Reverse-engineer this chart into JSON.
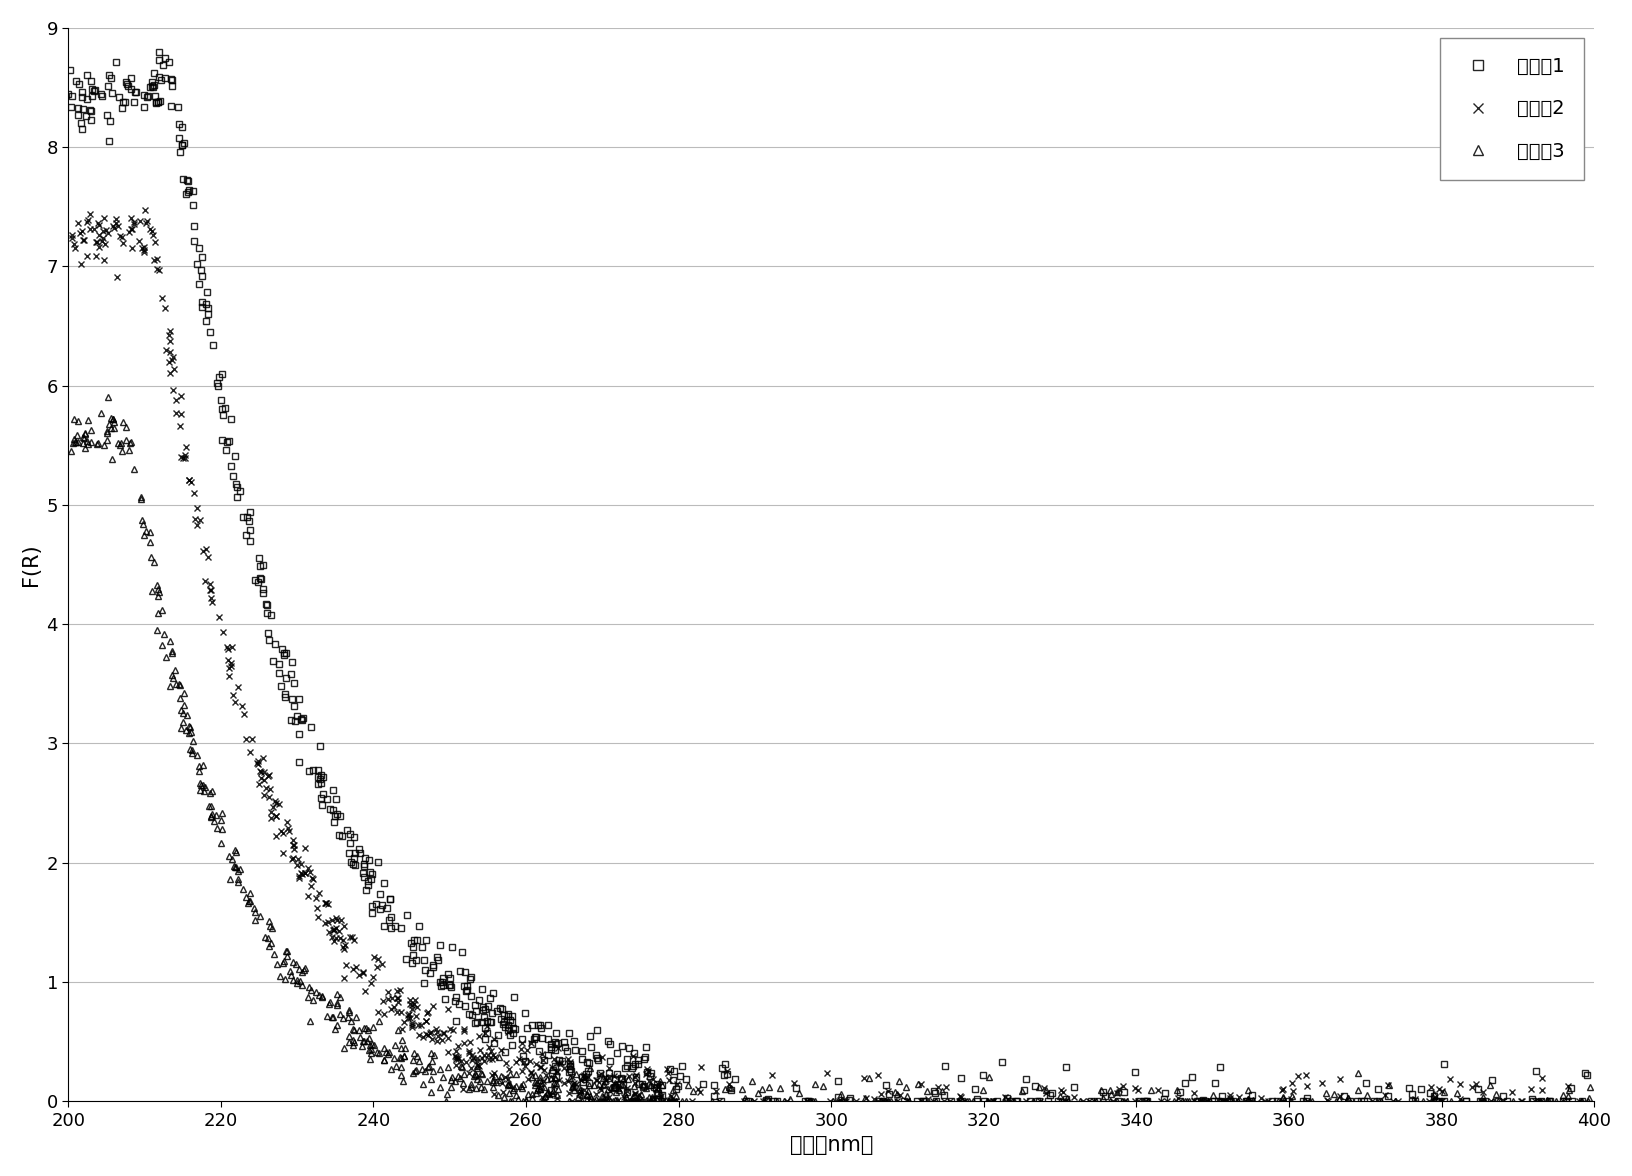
{
  "title": "",
  "xlabel": "波长（nm）",
  "ylabel": "F(R)",
  "xlim": [
    200,
    400
  ],
  "ylim": [
    0,
    9
  ],
  "xticks": [
    200,
    220,
    240,
    260,
    280,
    300,
    320,
    340,
    360,
    380,
    400
  ],
  "yticks": [
    0,
    1,
    2,
    3,
    4,
    5,
    6,
    7,
    8,
    9
  ],
  "series": [
    {
      "label": "实施例1",
      "marker": "s",
      "color": "#000000",
      "peak_x": 214,
      "peak_y": 8.5,
      "decay": 0.06,
      "rise_a": 2.5,
      "rise_b": 1.8,
      "noise_y": 0.13,
      "n_points": 600,
      "open_marker": true
    },
    {
      "label": "实施例2",
      "marker": "x",
      "color": "#000000",
      "peak_x": 211,
      "peak_y": 7.3,
      "decay": 0.068,
      "rise_a": 2.8,
      "rise_b": 2.0,
      "noise_y": 0.11,
      "n_points": 600,
      "open_marker": false
    },
    {
      "label": "实施例3",
      "marker": "^",
      "color": "#000000",
      "peak_x": 208,
      "peak_y": 5.6,
      "decay": 0.076,
      "rise_a": 3.2,
      "rise_b": 2.2,
      "noise_y": 0.09,
      "n_points": 600,
      "open_marker": true
    }
  ],
  "background_color": "#ffffff",
  "grid_color": "#bbbbbb",
  "marker_size": 5,
  "fontsize_label": 15,
  "fontsize_tick": 13,
  "fontsize_legend": 14
}
